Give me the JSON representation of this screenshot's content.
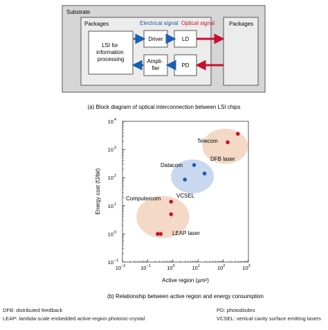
{
  "diagram_a": {
    "substrate_label": "Substrate",
    "packages_left_label": "Packages",
    "packages_right_label": "Packages",
    "lsi_lines": [
      "LSI for",
      "information",
      "processing"
    ],
    "driver_label": "Driver",
    "amplifier_lines": [
      "Ampli-",
      "fier"
    ],
    "ld_label": "LD",
    "pd_label": "PD",
    "electrical_signal_label": "Electrical signal",
    "optical_signal_label": "Optical signal",
    "electrical_color": "#1a5fb4",
    "optical_color": "#c8102e",
    "caption": "(a) Block diagram of optical interconnection between LSI chips"
  },
  "chart_b": {
    "caption": "(b) Relationship between active region and energy consumption"
  },
  "chart_data": {
    "type": "scatter",
    "x_scale": "log",
    "y_scale": "log",
    "xlabel": "Active region (µm²)",
    "ylabel": "Energy cost (fJ/bit)",
    "xlim": [
      0.01,
      1000
    ],
    "ylim": [
      0.1,
      10000
    ],
    "x_ticks": [
      {
        "b": "10",
        "e": "−2"
      },
      {
        "b": "10",
        "e": "−1"
      },
      {
        "b": "10",
        "e": "0"
      },
      {
        "b": "10",
        "e": "1"
      },
      {
        "b": "10",
        "e": "2"
      },
      {
        "b": "10",
        "e": "3"
      }
    ],
    "y_ticks": [
      {
        "b": "10",
        "e": "−1"
      },
      {
        "b": "10",
        "e": "0"
      },
      {
        "b": "10",
        "e": "1"
      },
      {
        "b": "10",
        "e": "2"
      },
      {
        "b": "10",
        "e": "3"
      },
      {
        "b": "10",
        "e": "4"
      }
    ],
    "series": [
      {
        "name": "Telecom",
        "color": "#c8102e",
        "points": [
          [
            150,
            1800
          ],
          [
            380,
            3600
          ]
        ]
      },
      {
        "name": "Datacom",
        "color": "#1a5fb4",
        "points": [
          [
            7,
            280
          ],
          [
            18,
            140
          ],
          [
            3,
            85
          ]
        ]
      },
      {
        "name": "Computercom",
        "color": "#c8102e",
        "points": [
          [
            0.85,
            14
          ],
          [
            0.85,
            5
          ],
          [
            0.25,
            1
          ],
          [
            0.33,
            1
          ]
        ]
      }
    ],
    "regions": [
      {
        "label": "DFB laser",
        "color": "#f3d9c6",
        "cx": 120,
        "cy": 1300,
        "spanx": 1.8,
        "spany": 1.25
      },
      {
        "label": "VCSEL",
        "color": "#c9d7ef",
        "cx": 6,
        "cy": 110,
        "spanx": 1.7,
        "spany": 1.2
      },
      {
        "label": "LEAP laser",
        "color": "#f3d9c6",
        "cx": 0.4,
        "cy": 4,
        "spanx": 2.1,
        "spany": 1.5
      }
    ],
    "annotations": [
      "Telecom",
      "DFB laser",
      "Datacom",
      "VCSEL",
      "Computercom",
      "LEAP laser"
    ]
  },
  "footnotes": {
    "dfb": "DFB: distributed feedback",
    "leap": "LEAP: lambda-scale embedded active-region photonic-crystal",
    "pd": "PD: photodiodes",
    "vcsel": "VCSEL: vertical cavity surface emitting lasers"
  }
}
